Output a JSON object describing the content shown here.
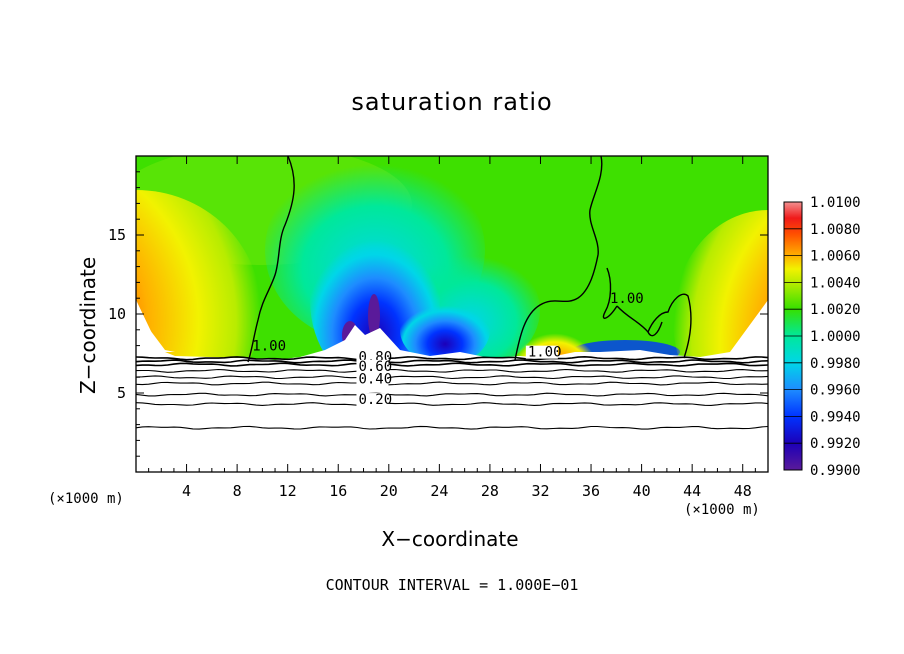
{
  "chart_data": {
    "type": "heatmap",
    "title": "saturation ratio",
    "xlabel": "X−coordinate",
    "ylabel": "Z−coordinate",
    "x_unit_left": "(×1000 m)",
    "x_unit_right": "(×1000 m)",
    "footer": "CONTOUR INTERVAL = 1.000E−01",
    "xlim": [
      0,
      50
    ],
    "ylim": [
      0,
      20
    ],
    "x_ticks": [
      4,
      8,
      12,
      16,
      20,
      24,
      28,
      32,
      36,
      40,
      44,
      48
    ],
    "x_tick_labels": [
      "4",
      "8",
      "12",
      "16",
      "20",
      "24",
      "28",
      "32",
      "36",
      "40",
      "44",
      "48"
    ],
    "y_ticks": [
      5,
      10,
      15
    ],
    "y_tick_labels": [
      "5",
      "10",
      "15"
    ],
    "colorbar": {
      "min": 0.99,
      "max": 1.01,
      "tick_labels": [
        "0.9900",
        "0.9920",
        "0.9940",
        "0.9960",
        "0.9980",
        "1.0000",
        "1.0020",
        "1.0040",
        "1.0060",
        "1.0080",
        "1.0100"
      ],
      "colors": [
        "#5a1a9a",
        "#1c00b8",
        "#0033ff",
        "#1e8cff",
        "#00d6e8",
        "#00e89a",
        "#36e000",
        "#b8ec00",
        "#f2f200",
        "#ffb000",
        "#ff5000",
        "#f01a1a",
        "#f39090"
      ]
    },
    "contour_labels": [
      {
        "text": "0.80",
        "x": 17.6,
        "z": 7.0
      },
      {
        "text": "0.60",
        "x": 17.6,
        "z": 6.4
      },
      {
        "text": "0.40",
        "x": 17.6,
        "z": 5.6
      },
      {
        "text": "0.20",
        "x": 17.6,
        "z": 4.3
      },
      {
        "text": "1.00",
        "x": 9.2,
        "z": 7.7
      },
      {
        "text": "1.00",
        "x": 31.0,
        "z": 7.3
      },
      {
        "text": "1.00",
        "x": 37.5,
        "z": 10.7
      }
    ],
    "subsaturated_lines_z": [
      2.8,
      4.3,
      4.9,
      5.6,
      6.0,
      6.4,
      6.8,
      7.0,
      7.2
    ]
  }
}
